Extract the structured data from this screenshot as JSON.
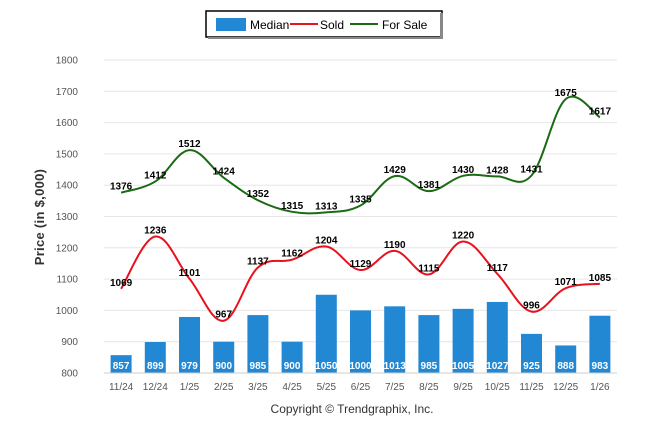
{
  "chart_data": {
    "type": "bar",
    "title": "",
    "xlabel": "",
    "ylabel": "Price (in $,000)",
    "ylim": [
      800,
      1800
    ],
    "yticks": [
      800,
      900,
      1000,
      1100,
      1200,
      1300,
      1400,
      1500,
      1600,
      1700,
      1800
    ],
    "grid": true,
    "legend_position": "top-center",
    "categories": [
      "11/24",
      "12/24",
      "1/25",
      "2/25",
      "3/25",
      "4/25",
      "5/25",
      "6/25",
      "7/25",
      "8/25",
      "9/25",
      "10/25",
      "11/25",
      "12/25",
      "1/26"
    ],
    "series": [
      {
        "name": "Median",
        "kind": "bar",
        "color": "#2288d4",
        "values": [
          857,
          899,
          979,
          900,
          985,
          900,
          1050,
          1000,
          1013,
          985,
          1005,
          1027,
          925,
          888,
          983
        ]
      },
      {
        "name": "Sold",
        "kind": "line",
        "color": "#e8111e",
        "values": [
          1069,
          1236,
          1101,
          967,
          1137,
          1162,
          1204,
          1129,
          1190,
          1115,
          1220,
          1117,
          996,
          1071,
          1085
        ]
      },
      {
        "name": "For Sale",
        "kind": "line",
        "color": "#1a6b14",
        "values": [
          1376,
          1412,
          1512,
          1424,
          1352,
          1315,
          1313,
          1335,
          1429,
          1381,
          1430,
          1428,
          1431,
          1675,
          1617
        ]
      }
    ],
    "footer": "Copyright © Trendgraphix, Inc."
  }
}
